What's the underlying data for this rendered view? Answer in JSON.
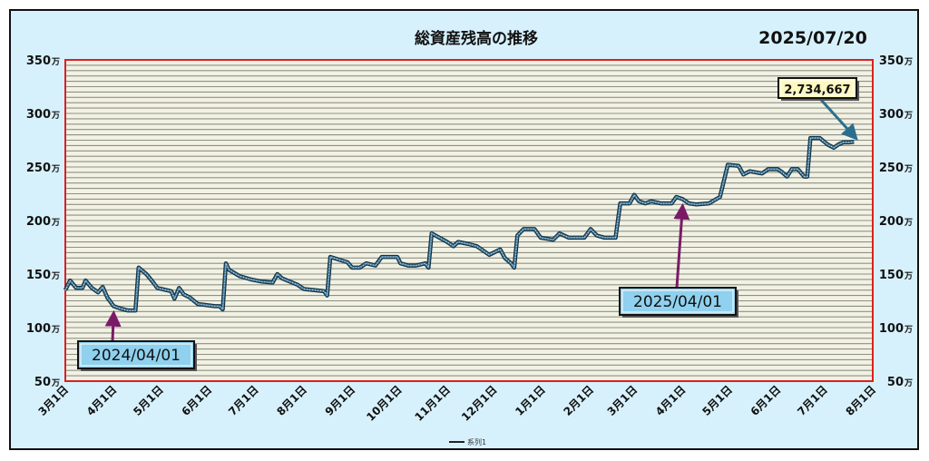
{
  "chart_data": {
    "type": "line",
    "title": "総資産残高の推移",
    "date_label": "2025/07/20",
    "y_unit": "万",
    "ylim": [
      50,
      350
    ],
    "y_ticks": [
      50,
      100,
      150,
      200,
      250,
      300,
      350
    ],
    "grid": true,
    "x_tick_labels": [
      "3月1日",
      "4月1日",
      "5月1日",
      "6月1日",
      "7月1日",
      "8月1日",
      "9月1日",
      "10月1日",
      "11月1日",
      "12月1日",
      "1月1日",
      "2月1日",
      "3月1日",
      "4月1日",
      "5月1日",
      "6月1日",
      "7月1日",
      "8月1日"
    ],
    "x_tick_dates": [
      "2024-03-01",
      "2024-04-01",
      "2024-05-01",
      "2024-06-01",
      "2024-07-01",
      "2024-08-01",
      "2024-09-01",
      "2024-10-01",
      "2024-11-01",
      "2024-12-01",
      "2025-01-01",
      "2025-02-01",
      "2025-03-01",
      "2025-04-01",
      "2025-05-01",
      "2025-06-01",
      "2025-07-01",
      "2025-08-01"
    ],
    "legend": {
      "label": "系列1",
      "position": "bottom-center"
    },
    "series": [
      {
        "name": "系列1",
        "color": "#4a7fa0",
        "points": [
          [
            "2024-03-01",
            135
          ],
          [
            "2024-03-04",
            144
          ],
          [
            "2024-03-08",
            137
          ],
          [
            "2024-03-12",
            137
          ],
          [
            "2024-03-14",
            144
          ],
          [
            "2024-03-18",
            137
          ],
          [
            "2024-03-22",
            133
          ],
          [
            "2024-03-25",
            138
          ],
          [
            "2024-03-28",
            128
          ],
          [
            "2024-04-01",
            120
          ],
          [
            "2024-04-05",
            118
          ],
          [
            "2024-04-10",
            116
          ],
          [
            "2024-04-15",
            116
          ],
          [
            "2024-04-17",
            156
          ],
          [
            "2024-04-22",
            150
          ],
          [
            "2024-04-26",
            143
          ],
          [
            "2024-04-29",
            137
          ],
          [
            "2024-05-08",
            134
          ],
          [
            "2024-05-10",
            127
          ],
          [
            "2024-05-13",
            137
          ],
          [
            "2024-05-16",
            131
          ],
          [
            "2024-05-20",
            128
          ],
          [
            "2024-05-25",
            122
          ],
          [
            "2024-06-05",
            120
          ],
          [
            "2024-06-08",
            120
          ],
          [
            "2024-06-10",
            117
          ],
          [
            "2024-06-12",
            160
          ],
          [
            "2024-06-14",
            154
          ],
          [
            "2024-06-21",
            148
          ],
          [
            "2024-06-28",
            145
          ],
          [
            "2024-07-05",
            143
          ],
          [
            "2024-07-12",
            142
          ],
          [
            "2024-07-15",
            150
          ],
          [
            "2024-07-18",
            146
          ],
          [
            "2024-07-28",
            140
          ],
          [
            "2024-08-01",
            136
          ],
          [
            "2024-08-08",
            135
          ],
          [
            "2024-08-14",
            134
          ],
          [
            "2024-08-16",
            130
          ],
          [
            "2024-08-18",
            166
          ],
          [
            "2024-08-29",
            161
          ],
          [
            "2024-09-01",
            156
          ],
          [
            "2024-09-06",
            156
          ],
          [
            "2024-09-10",
            160
          ],
          [
            "2024-09-16",
            158
          ],
          [
            "2024-09-20",
            166
          ],
          [
            "2024-09-30",
            166
          ],
          [
            "2024-10-02",
            160
          ],
          [
            "2024-10-07",
            158
          ],
          [
            "2024-10-12",
            158
          ],
          [
            "2024-10-18",
            160
          ],
          [
            "2024-10-20",
            156
          ],
          [
            "2024-10-22",
            188
          ],
          [
            "2024-11-01",
            180
          ],
          [
            "2024-11-05",
            176
          ],
          [
            "2024-11-08",
            180
          ],
          [
            "2024-11-15",
            178
          ],
          [
            "2024-11-20",
            176
          ],
          [
            "2024-11-28",
            168
          ],
          [
            "2024-12-05",
            173
          ],
          [
            "2024-12-08",
            165
          ],
          [
            "2024-12-12",
            160
          ],
          [
            "2024-12-14",
            156
          ],
          [
            "2024-12-16",
            186
          ],
          [
            "2024-12-20",
            192
          ],
          [
            "2024-12-27",
            192
          ],
          [
            "2024-12-31",
            184
          ],
          [
            "2025-01-08",
            182
          ],
          [
            "2025-01-12",
            188
          ],
          [
            "2025-01-18",
            184
          ],
          [
            "2025-01-28",
            184
          ],
          [
            "2025-02-01",
            192
          ],
          [
            "2025-02-05",
            186
          ],
          [
            "2025-02-10",
            184
          ],
          [
            "2025-02-17",
            184
          ],
          [
            "2025-02-20",
            216
          ],
          [
            "2025-02-26",
            216
          ],
          [
            "2025-03-01",
            224
          ],
          [
            "2025-03-04",
            218
          ],
          [
            "2025-03-08",
            216
          ],
          [
            "2025-03-12",
            218
          ],
          [
            "2025-03-18",
            216
          ],
          [
            "2025-03-25",
            216
          ],
          [
            "2025-03-28",
            222
          ],
          [
            "2025-04-01",
            220
          ],
          [
            "2025-04-05",
            216
          ],
          [
            "2025-04-10",
            215
          ],
          [
            "2025-04-18",
            216
          ],
          [
            "2025-04-25",
            222
          ],
          [
            "2025-04-30",
            252
          ],
          [
            "2025-05-07",
            251
          ],
          [
            "2025-05-10",
            243
          ],
          [
            "2025-05-14",
            246
          ],
          [
            "2025-05-22",
            244
          ],
          [
            "2025-05-26",
            248
          ],
          [
            "2025-06-01",
            248
          ],
          [
            "2025-06-04",
            245
          ],
          [
            "2025-06-07",
            241
          ],
          [
            "2025-06-10",
            248
          ],
          [
            "2025-06-14",
            248
          ],
          [
            "2025-06-18",
            241
          ],
          [
            "2025-06-20",
            241
          ],
          [
            "2025-06-22",
            277
          ],
          [
            "2025-06-28",
            277
          ],
          [
            "2025-07-03",
            271
          ],
          [
            "2025-07-07",
            268
          ],
          [
            "2025-07-10",
            271
          ],
          [
            "2025-07-13",
            273
          ],
          [
            "2025-07-17",
            273
          ],
          [
            "2025-07-20",
            273.5
          ]
        ]
      }
    ],
    "annotations": [
      {
        "text": "2024/04/01",
        "target": "2024-04-01"
      },
      {
        "text": "2025/04/01",
        "target": "2025-04-01"
      },
      {
        "text": "2,734,667",
        "target": "2025-07-20"
      }
    ]
  }
}
